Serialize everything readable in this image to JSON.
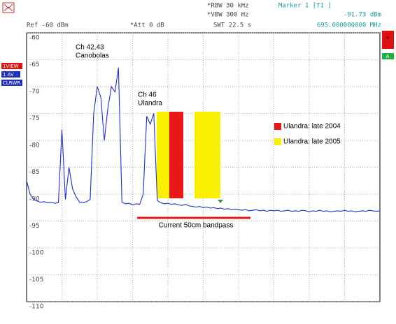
{
  "header": {
    "rbw": "*RBW 30 kHz",
    "vbw": "*VBW 300 Hz",
    "swt": "SWT 22.5 s",
    "marker": "Marker 1 [T1 ]",
    "marker_level": "-91.73 dBm",
    "marker_freq": "695.000000000 MHz",
    "ref": "Ref -60 dBm",
    "att": "*Att 0 dB"
  },
  "side_labels": {
    "view": "1VIEW",
    "trace": "1 AV",
    "mode": "CLRWR",
    "star": "*",
    "a": "A"
  },
  "chart_data": {
    "type": "line",
    "color": "#1e2ed8",
    "values": [
      -87.5,
      -90,
      -91,
      -91.3,
      -91.5,
      -91.4,
      -91.6,
      -91.5,
      -91.7,
      -91.6,
      -78,
      -91,
      -85,
      -89,
      -90.5,
      -91.5,
      -91.6,
      -91.4,
      -91,
      -75,
      -70,
      -72,
      -80,
      -74,
      -70,
      -71,
      -66.5,
      -91.5,
      -91.8,
      -91.7,
      -92,
      -91.8,
      -91.9,
      -90,
      -75.5,
      -77,
      -75,
      -91.2,
      -91.6,
      -91.8,
      -91.7,
      -91.9,
      -91.8,
      -92,
      -92.1,
      -91.9,
      -92.2,
      -92.3,
      -92.4,
      -92.3,
      -92.5,
      -92.4,
      -92.6,
      -92.5,
      -92.7,
      -92.6,
      -92.8,
      -92.7,
      -92.9,
      -92.8,
      -92.9,
      -93,
      -92.9,
      -93.1,
      -93,
      -92.9,
      -93.1,
      -93,
      -93.2,
      -93,
      -93.1,
      -93,
      -93.2,
      -93.1,
      -93,
      -93.2,
      -93.1,
      -93.2,
      -93,
      -93.1,
      -93.3,
      -93.1,
      -93.2,
      -93,
      -93.2,
      -93.1,
      -93.3,
      -93.2,
      -93.1,
      -93.2,
      -93,
      -93.2,
      -93.1,
      -93.3,
      -93.2,
      -93.1,
      -93.2,
      -93,
      -93.1,
      -93.2,
      -93.1
    ],
    "ylim": [
      -110,
      -60
    ],
    "yticks": [
      -60,
      -65,
      -70,
      -75,
      -80,
      -85,
      -90,
      -95,
      -100,
      -105,
      -110
    ],
    "grid": true,
    "annotations": [
      "Ch 42,43",
      "Canobolas",
      "Ch 46",
      "Ulandra"
    ],
    "legend": [
      {
        "name": "Ulandra: late 2004",
        "color": "#e81818"
      },
      {
        "name": "Ulandra: late 2005",
        "color": "#f8f000"
      }
    ],
    "bandpass_label": "Current 50cm bandpass"
  }
}
